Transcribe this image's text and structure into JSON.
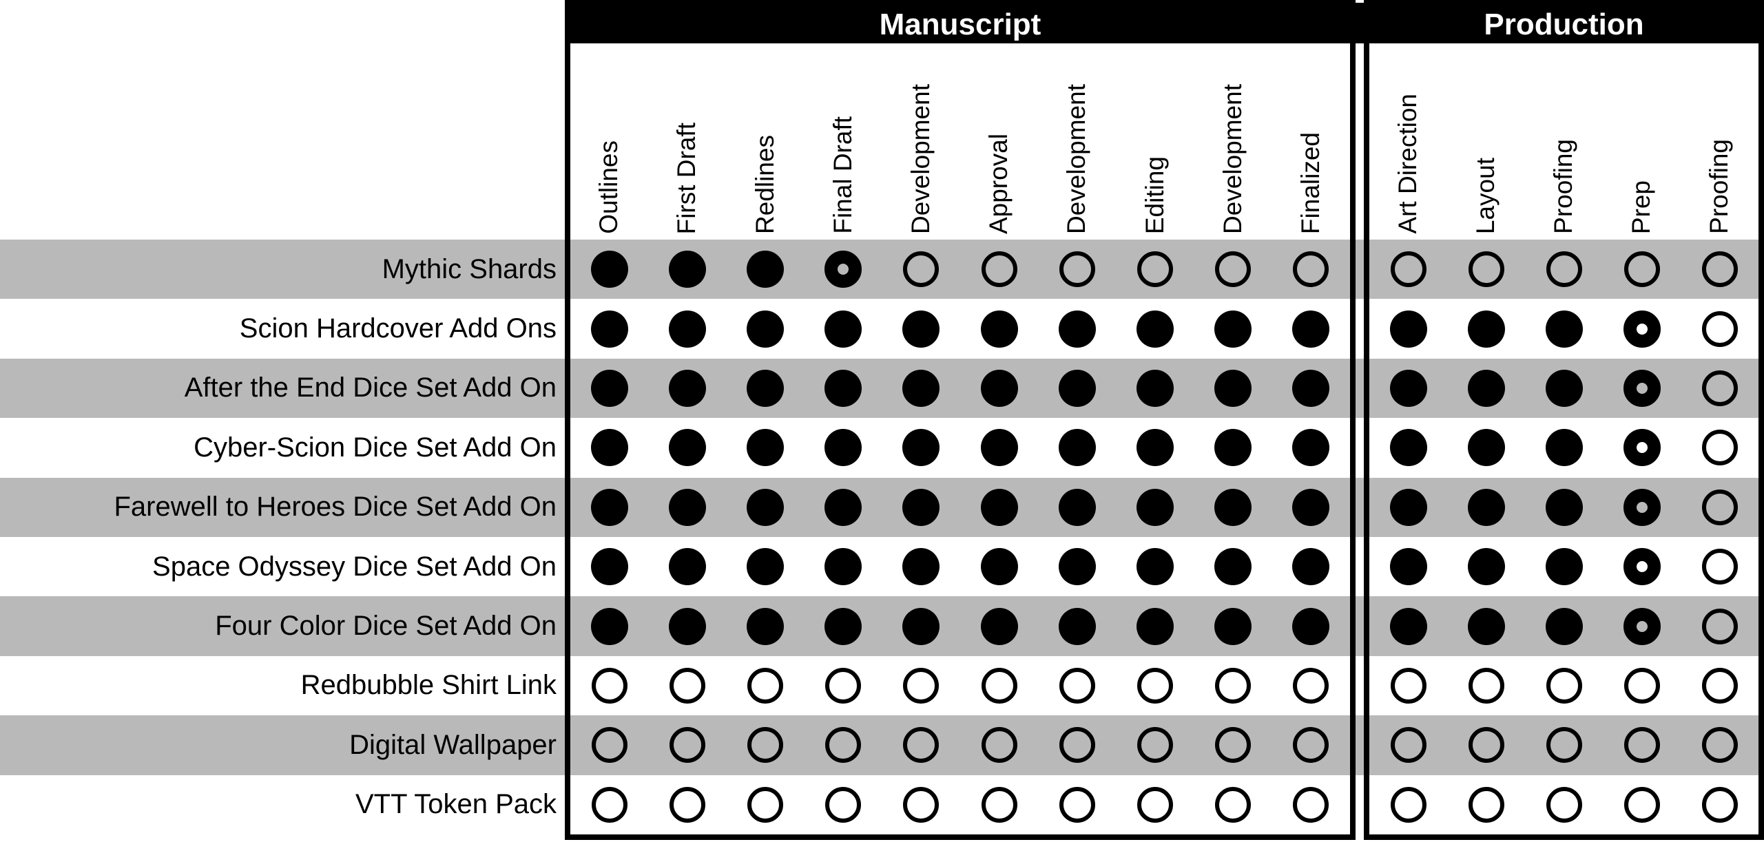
{
  "colors": {
    "stripe_gray": "#b9b9b9",
    "ink": "#000000",
    "header_bg": "#000000",
    "header_text": "#ffffff",
    "background": "#ffffff"
  },
  "chart_data": {
    "type": "table",
    "title": "",
    "layout_hints": {
      "row_stripes": "alternating gray/white starting gray",
      "column_headers": "rotated 90deg, read bottom-to-top",
      "status_encoding": {
        "filled": "solid black dot",
        "partial": "black dot with hollow center",
        "empty": "hollow circle outline"
      }
    },
    "sections": [
      {
        "id": "manuscript",
        "title": "Manuscript",
        "columns": [
          "Outlines",
          "First Draft",
          "Redlines",
          "Final Draft",
          "Development",
          "Approval",
          "Development",
          "Editing",
          "Development",
          "Finalized"
        ]
      },
      {
        "id": "production",
        "title": "Production",
        "columns": [
          "Art Direction",
          "Layout",
          "Proofing",
          "Prep",
          "Proofing"
        ]
      }
    ],
    "rows": [
      {
        "label": "Mythic Shards",
        "manuscript": [
          "filled",
          "filled",
          "filled",
          "partial",
          "empty",
          "empty",
          "empty",
          "empty",
          "empty",
          "empty"
        ],
        "production": [
          "empty",
          "empty",
          "empty",
          "empty",
          "empty"
        ]
      },
      {
        "label": "Scion Hardcover Add Ons",
        "manuscript": [
          "filled",
          "filled",
          "filled",
          "filled",
          "filled",
          "filled",
          "filled",
          "filled",
          "filled",
          "filled"
        ],
        "production": [
          "filled",
          "filled",
          "filled",
          "partial",
          "empty"
        ]
      },
      {
        "label": "After the End Dice Set Add On",
        "manuscript": [
          "filled",
          "filled",
          "filled",
          "filled",
          "filled",
          "filled",
          "filled",
          "filled",
          "filled",
          "filled"
        ],
        "production": [
          "filled",
          "filled",
          "filled",
          "partial",
          "empty"
        ]
      },
      {
        "label": "Cyber-Scion Dice Set Add On",
        "manuscript": [
          "filled",
          "filled",
          "filled",
          "filled",
          "filled",
          "filled",
          "filled",
          "filled",
          "filled",
          "filled"
        ],
        "production": [
          "filled",
          "filled",
          "filled",
          "partial",
          "empty"
        ]
      },
      {
        "label": "Farewell to Heroes Dice Set Add On",
        "manuscript": [
          "filled",
          "filled",
          "filled",
          "filled",
          "filled",
          "filled",
          "filled",
          "filled",
          "filled",
          "filled"
        ],
        "production": [
          "filled",
          "filled",
          "filled",
          "partial",
          "empty"
        ]
      },
      {
        "label": "Space Odyssey Dice Set Add On",
        "manuscript": [
          "filled",
          "filled",
          "filled",
          "filled",
          "filled",
          "filled",
          "filled",
          "filled",
          "filled",
          "filled"
        ],
        "production": [
          "filled",
          "filled",
          "filled",
          "partial",
          "empty"
        ]
      },
      {
        "label": "Four Color Dice Set Add On",
        "manuscript": [
          "filled",
          "filled",
          "filled",
          "filled",
          "filled",
          "filled",
          "filled",
          "filled",
          "filled",
          "filled"
        ],
        "production": [
          "filled",
          "filled",
          "filled",
          "partial",
          "empty"
        ]
      },
      {
        "label": "Redbubble Shirt Link",
        "manuscript": [
          "empty",
          "empty",
          "empty",
          "empty",
          "empty",
          "empty",
          "empty",
          "empty",
          "empty",
          "empty"
        ],
        "production": [
          "empty",
          "empty",
          "empty",
          "empty",
          "empty"
        ]
      },
      {
        "label": "Digital Wallpaper",
        "manuscript": [
          "empty",
          "empty",
          "empty",
          "empty",
          "empty",
          "empty",
          "empty",
          "empty",
          "empty",
          "empty"
        ],
        "production": [
          "empty",
          "empty",
          "empty",
          "empty",
          "empty"
        ]
      },
      {
        "label": "VTT Token Pack",
        "manuscript": [
          "empty",
          "empty",
          "empty",
          "empty",
          "empty",
          "empty",
          "empty",
          "empty",
          "empty",
          "empty"
        ],
        "production": [
          "empty",
          "empty",
          "empty",
          "empty",
          "empty"
        ]
      }
    ]
  }
}
